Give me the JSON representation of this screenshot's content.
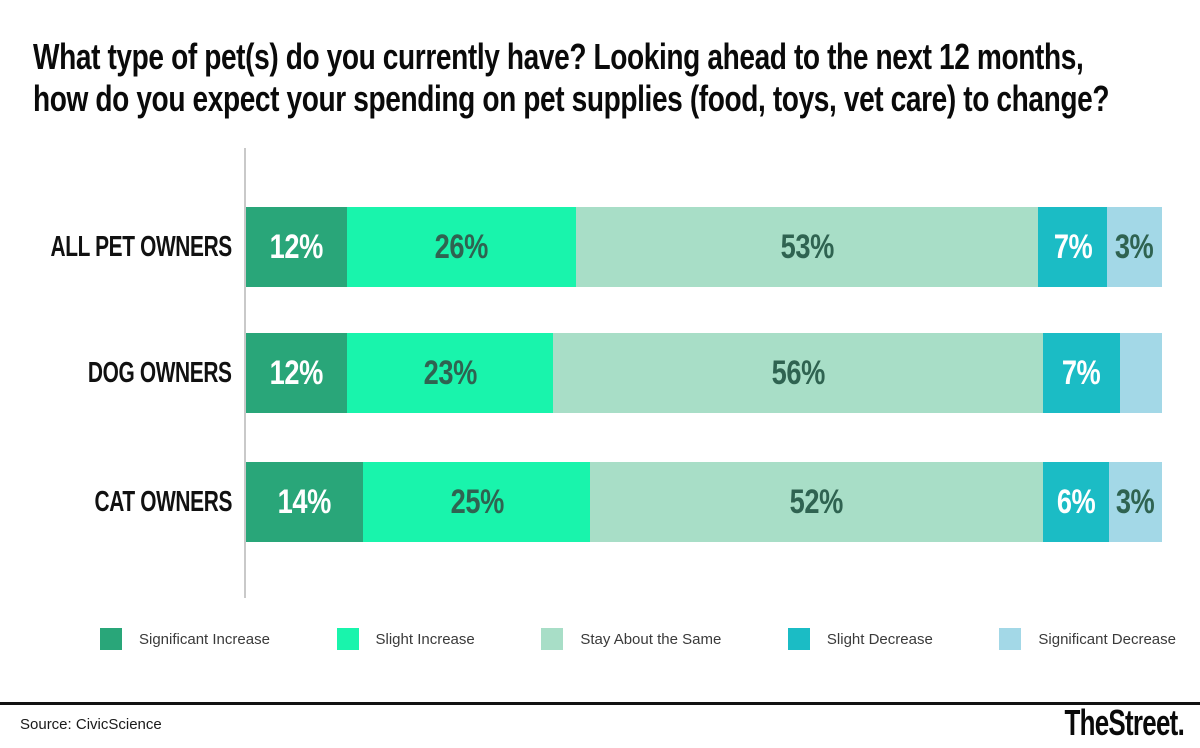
{
  "title": {
    "line1": "What type of pet(s) do you currently have? Looking ahead to the next 12 months,",
    "line2": "how do you expect your spending on pet supplies (food, toys, vet care) to change?"
  },
  "chart_data": {
    "type": "bar",
    "orientation": "horizontal",
    "stacked": true,
    "xlim": [
      0,
      100
    ],
    "grid": false,
    "legend_position": "bottom",
    "categories": [
      "ALL PET OWNERS",
      "DOG OWNERS",
      "CAT OWNERS"
    ],
    "series": [
      {
        "name": "Significant Increase",
        "color": "#29a679",
        "values": [
          12,
          12,
          14
        ]
      },
      {
        "name": "Slight Increase",
        "color": "#19f4ac",
        "values": [
          26,
          23,
          25
        ]
      },
      {
        "name": "Stay About the Same",
        "color": "#a8dec7",
        "values": [
          53,
          56,
          52
        ]
      },
      {
        "name": "Slight Decrease",
        "color": "#1bbcc5",
        "values": [
          7,
          7,
          6
        ]
      },
      {
        "name": "Significant Decrease",
        "color": "#a3d8e7",
        "values": [
          3,
          null,
          3
        ]
      }
    ],
    "rows": [
      {
        "label": "ALL PET OWNERS",
        "segments": [
          {
            "label": "12%",
            "width": 11.0
          },
          {
            "label": "26%",
            "width": 25.0
          },
          {
            "label": "53%",
            "width": 50.5
          },
          {
            "label": "7%",
            "width": 7.5
          },
          {
            "label": "3%",
            "width": 6.0
          }
        ]
      },
      {
        "label": "DOG OWNERS",
        "segments": [
          {
            "label": "12%",
            "width": 11.0
          },
          {
            "label": "23%",
            "width": 22.5
          },
          {
            "label": "56%",
            "width": 53.5
          },
          {
            "label": "7%",
            "width": 8.4
          },
          {
            "label": "",
            "width": 4.6
          }
        ]
      },
      {
        "label": "CAT OWNERS",
        "segments": [
          {
            "label": "14%",
            "width": 12.8
          },
          {
            "label": "25%",
            "width": 24.8
          },
          {
            "label": "52%",
            "width": 49.4
          },
          {
            "label": "6%",
            "width": 7.2
          },
          {
            "label": "3%",
            "width": 5.8
          }
        ]
      }
    ],
    "legend": [
      {
        "label": "Significant Increase",
        "color": "#29a679"
      },
      {
        "label": "Slight Increase",
        "color": "#19f4ac"
      },
      {
        "label": "Stay About the Same",
        "color": "#a8dec7"
      },
      {
        "label": "Slight Decrease",
        "color": "#1bbcc5"
      },
      {
        "label": "Significant Decrease",
        "color": "#a3d8e7"
      }
    ]
  },
  "footer": {
    "source": "Source: CivicScience",
    "logo": "TheStreet."
  }
}
